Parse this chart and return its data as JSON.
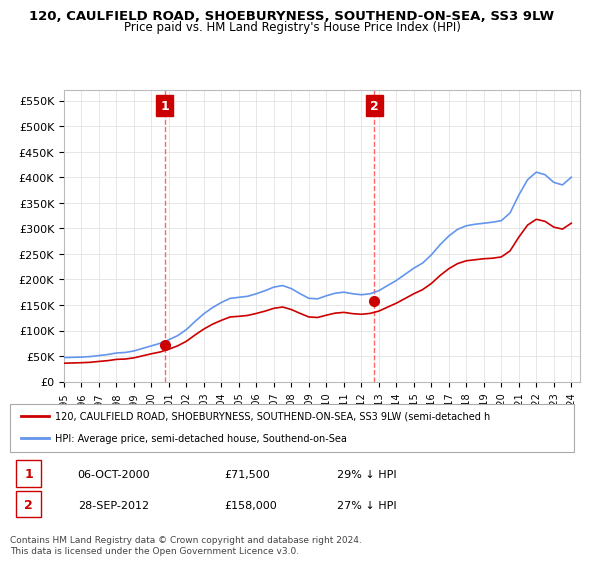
{
  "title": "120, CAULFIELD ROAD, SHOEBURYNESS, SOUTHEND-ON-SEA, SS3 9LW",
  "subtitle": "Price paid vs. HM Land Registry's House Price Index (HPI)",
  "ylim": [
    0,
    570000
  ],
  "yticks": [
    0,
    50000,
    100000,
    150000,
    200000,
    250000,
    300000,
    350000,
    400000,
    450000,
    500000,
    550000
  ],
  "ytick_labels": [
    "£0",
    "£50K",
    "£100K",
    "£150K",
    "£200K",
    "£250K",
    "£300K",
    "£350K",
    "£400K",
    "£450K",
    "£500K",
    "£550K"
  ],
  "hpi_color": "#6495ED",
  "price_color": "#CC0000",
  "vline_color": "#FF6666",
  "annotation_box_color": "#CC0000",
  "background_color": "#FFFFFF",
  "grid_color": "#DDDDDD",
  "transaction1": {
    "date_num": 2000.75,
    "price": 71500,
    "label": "1"
  },
  "transaction2": {
    "date_num": 2012.75,
    "price": 158000,
    "label": "2"
  },
  "legend_line1": "120, CAULFIELD ROAD, SHOEBURYNESS, SOUTHEND-ON-SEA, SS3 9LW (semi-detached h",
  "legend_line2": "HPI: Average price, semi-detached house, Southend-on-Sea",
  "table_row1": [
    "1",
    "06-OCT-2000",
    "£71,500",
    "29% ↓ HPI"
  ],
  "table_row2": [
    "2",
    "28-SEP-2012",
    "£158,000",
    "27% ↓ HPI"
  ],
  "footer": "Contains HM Land Registry data © Crown copyright and database right 2024.\nThis data is licensed under the Open Government Licence v3.0.",
  "hpi_data": {
    "years": [
      1995,
      1995.5,
      1996,
      1996.5,
      1997,
      1997.5,
      1998,
      1998.5,
      1999,
      1999.5,
      2000,
      2000.5,
      2001,
      2001.5,
      2002,
      2002.5,
      2003,
      2003.5,
      2004,
      2004.5,
      2005,
      2005.5,
      2006,
      2006.5,
      2007,
      2007.5,
      2008,
      2008.5,
      2009,
      2009.5,
      2010,
      2010.5,
      2011,
      2011.5,
      2012,
      2012.5,
      2013,
      2013.5,
      2014,
      2014.5,
      2015,
      2015.5,
      2016,
      2016.5,
      2017,
      2017.5,
      2018,
      2018.5,
      2019,
      2019.5,
      2020,
      2020.5,
      2021,
      2021.5,
      2022,
      2022.5,
      2023,
      2023.5,
      2024
    ],
    "values": [
      47000,
      47500,
      48000,
      49000,
      51000,
      53000,
      56000,
      57000,
      60000,
      65000,
      70000,
      75000,
      82000,
      90000,
      102000,
      118000,
      133000,
      145000,
      155000,
      163000,
      165000,
      167000,
      172000,
      178000,
      185000,
      188000,
      182000,
      172000,
      163000,
      162000,
      168000,
      173000,
      175000,
      172000,
      170000,
      172000,
      178000,
      188000,
      198000,
      210000,
      222000,
      232000,
      248000,
      268000,
      285000,
      298000,
      305000,
      308000,
      310000,
      312000,
      315000,
      330000,
      365000,
      395000,
      410000,
      405000,
      390000,
      385000,
      400000
    ]
  },
  "price_hpi_data": {
    "years": [
      1995,
      1995.5,
      1996,
      1996.5,
      1997,
      1997.5,
      1998,
      1998.5,
      1999,
      1999.5,
      2000,
      2000.5,
      2001,
      2001.5,
      2002,
      2002.5,
      2003,
      2003.5,
      2004,
      2004.5,
      2005,
      2005.5,
      2006,
      2006.5,
      2007,
      2007.5,
      2008,
      2008.5,
      2009,
      2009.5,
      2010,
      2010.5,
      2011,
      2011.5,
      2012,
      2012.5,
      2013,
      2013.5,
      2014,
      2014.5,
      2015,
      2015.5,
      2016,
      2016.5,
      2017,
      2017.5,
      2018,
      2018.5,
      2019,
      2019.5,
      2020,
      2020.5,
      2021,
      2021.5,
      2022,
      2022.5,
      2023,
      2023.5,
      2024
    ],
    "values": [
      36000,
      36500,
      37000,
      37800,
      39500,
      41000,
      43500,
      44200,
      46500,
      50500,
      54500,
      58000,
      63500,
      70000,
      79000,
      91500,
      103000,
      112500,
      120000,
      126500,
      127800,
      129500,
      133500,
      138000,
      143500,
      146000,
      141000,
      133500,
      126500,
      125500,
      130000,
      134000,
      135500,
      133000,
      131800,
      133500,
      138000,
      145800,
      153500,
      162700,
      172000,
      180000,
      192000,
      207700,
      221000,
      231000,
      236500,
      238500,
      240500,
      241500,
      244000,
      255800,
      282700,
      306300,
      317700,
      313700,
      302400,
      298500,
      310000
    ]
  }
}
